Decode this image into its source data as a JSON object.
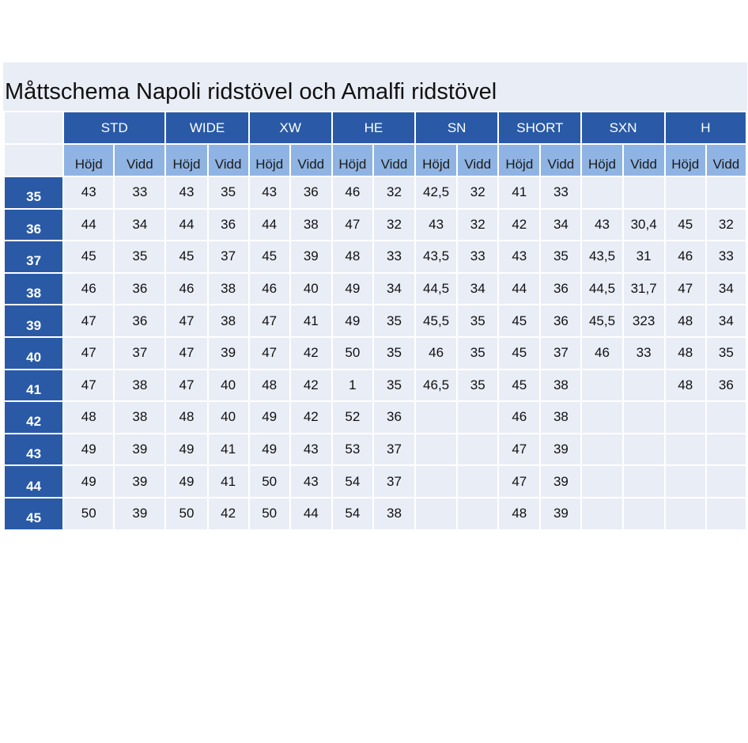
{
  "title": "Måttschema Napoli ridstövel och Amalfi ridstövel",
  "groups": [
    "STD",
    "WIDE",
    "XW",
    "HE",
    "SN",
    "SHORT",
    "SXN",
    "H"
  ],
  "sub_labels": {
    "height": "Höjd",
    "width": "Vidd"
  },
  "rows": [
    {
      "size": "35",
      "values": [
        "43",
        "33",
        "43",
        "35",
        "43",
        "36",
        "46",
        "32",
        "42,5",
        "32",
        "41",
        "33",
        "",
        "",
        "",
        ""
      ]
    },
    {
      "size": "36",
      "values": [
        "44",
        "34",
        "44",
        "36",
        "44",
        "38",
        "47",
        "32",
        "43",
        "32",
        "42",
        "34",
        "43",
        "30,4",
        "45",
        "32"
      ]
    },
    {
      "size": "37",
      "values": [
        "45",
        "35",
        "45",
        "37",
        "45",
        "39",
        "48",
        "33",
        "43,5",
        "33",
        "43",
        "35",
        "43,5",
        "31",
        "46",
        "33"
      ]
    },
    {
      "size": "38",
      "values": [
        "46",
        "36",
        "46",
        "38",
        "46",
        "40",
        "49",
        "34",
        "44,5",
        "34",
        "44",
        "36",
        "44,5",
        "31,7",
        "47",
        "34"
      ]
    },
    {
      "size": "39",
      "values": [
        "47",
        "36",
        "47",
        "38",
        "47",
        "41",
        "49",
        "35",
        "45,5",
        "35",
        "45",
        "36",
        "45,5",
        "323",
        "48",
        "34"
      ]
    },
    {
      "size": "40",
      "values": [
        "47",
        "37",
        "47",
        "39",
        "47",
        "42",
        "50",
        "35",
        "46",
        "35",
        "45",
        "37",
        "46",
        "33",
        "48",
        "35"
      ]
    },
    {
      "size": "41",
      "values": [
        "47",
        "38",
        "47",
        "40",
        "48",
        "42",
        "1",
        "35",
        "46,5",
        "35",
        "45",
        "38",
        "",
        "",
        "48",
        "36"
      ]
    },
    {
      "size": "42",
      "values": [
        "48",
        "38",
        "48",
        "40",
        "49",
        "42",
        "52",
        "36",
        "",
        "",
        "46",
        "38",
        "",
        "",
        "",
        ""
      ]
    },
    {
      "size": "43",
      "values": [
        "49",
        "39",
        "49",
        "41",
        "49",
        "43",
        "53",
        "37",
        "",
        "",
        "47",
        "39",
        "",
        "",
        "",
        ""
      ]
    },
    {
      "size": "44",
      "values": [
        "49",
        "39",
        "49",
        "41",
        "50",
        "43",
        "54",
        "37",
        "",
        "",
        "47",
        "39",
        "",
        "",
        "",
        ""
      ]
    },
    {
      "size": "45",
      "values": [
        "50",
        "39",
        "50",
        "42",
        "50",
        "44",
        "54",
        "38",
        "",
        "",
        "48",
        "39",
        "",
        "",
        "",
        ""
      ]
    }
  ]
}
